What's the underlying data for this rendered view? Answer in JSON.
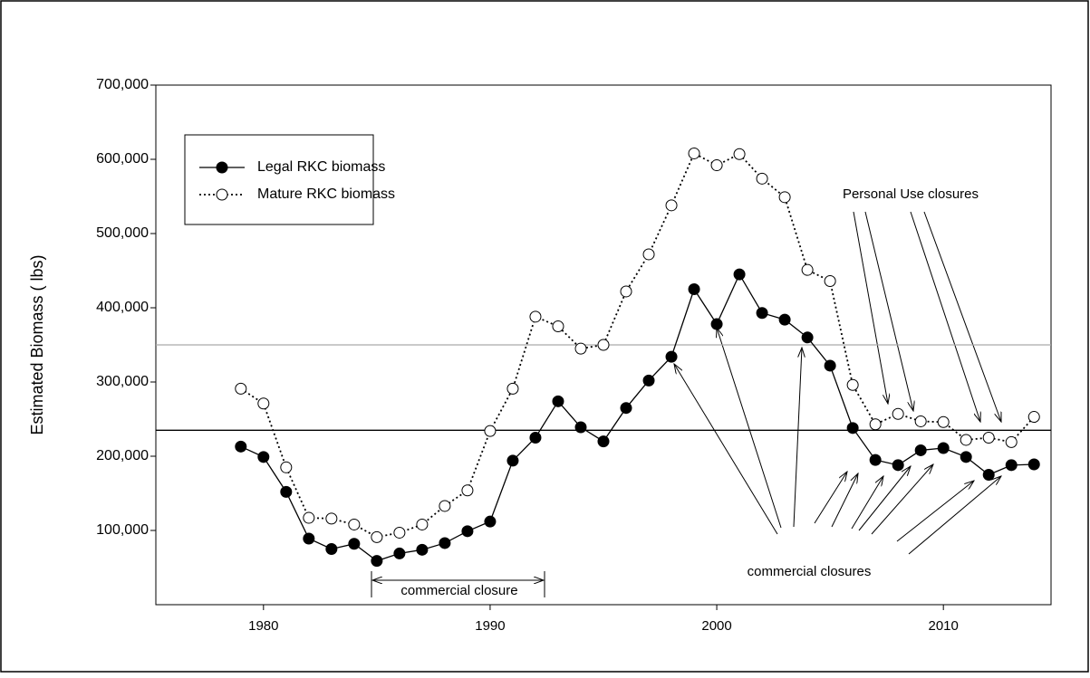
{
  "chart_data": {
    "type": "line",
    "y_label": "Estimated Biomass (  lbs)",
    "x": [
      1979,
      1980,
      1981,
      1982,
      1983,
      1984,
      1985,
      1986,
      1987,
      1988,
      1989,
      1990,
      1991,
      1992,
      1993,
      1994,
      1995,
      1996,
      1997,
      1998,
      1999,
      2000,
      2001,
      2002,
      2003,
      2004,
      2005,
      2006,
      2007,
      2008,
      2009,
      2010,
      2011,
      2012,
      2013,
      2014
    ],
    "series": [
      {
        "name": "Legal RKC biomass",
        "color": "#000000",
        "marker": "filled",
        "dash": false,
        "values": [
          213000,
          199000,
          152000,
          89000,
          75000,
          82000,
          59000,
          69000,
          74000,
          83000,
          99000,
          112000,
          194000,
          225000,
          274000,
          239000,
          220000,
          265000,
          302000,
          334000,
          425000,
          378000,
          445000,
          393000,
          384000,
          360000,
          322000,
          238000,
          195000,
          188000,
          208000,
          211000,
          199000,
          175000,
          188000,
          189000
        ]
      },
      {
        "name": "Mature RKC biomass",
        "color": "#000000",
        "marker": "open",
        "dash": true,
        "values": [
          291000,
          271000,
          185000,
          117000,
          116000,
          108000,
          91000,
          97000,
          108000,
          133000,
          154000,
          234000,
          291000,
          388000,
          375000,
          345000,
          350000,
          422000,
          472000,
          538000,
          608000,
          592000,
          607000,
          574000,
          549000,
          451000,
          436000,
          296000,
          243000,
          257000,
          247000,
          246000,
          222000,
          225000,
          219000,
          253000
        ]
      }
    ],
    "reference_lines": [
      {
        "value": 350000,
        "color": "#aaaaaa"
      },
      {
        "value": 235000,
        "color": "#000000"
      }
    ],
    "xlim": [
      1975.25,
      2014.75
    ],
    "xticks": [
      1980,
      1990,
      2000,
      2010
    ],
    "ylim": [
      0,
      700000
    ],
    "yticks": [
      {
        "value": 100000,
        "label": "100,000"
      },
      {
        "value": 200000,
        "label": "200,000"
      },
      {
        "value": 300000,
        "label": "300,000"
      },
      {
        "value": 400000,
        "label": "400,000"
      },
      {
        "value": 500000,
        "label": "500,000"
      },
      {
        "value": 600000,
        "label": "600,000"
      },
      {
        "value": 700000,
        "label": "700,000"
      }
    ],
    "legend": "upper left",
    "annotations": [
      "Personal Use closures",
      "commercial closures",
      "commercial closure"
    ]
  }
}
